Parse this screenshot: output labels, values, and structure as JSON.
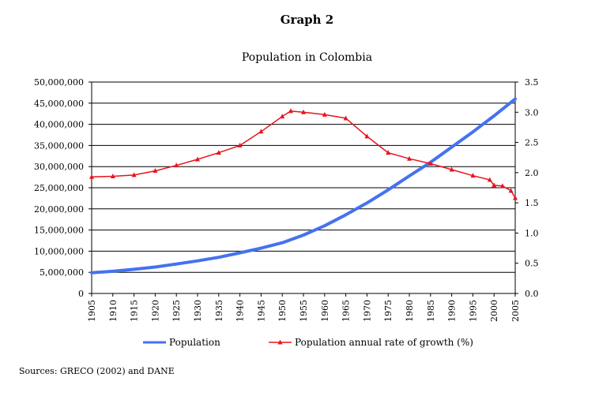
{
  "figure_label": "Graph 2",
  "source_note": "Sources: GRECO (2002) and DANE",
  "chart_data": {
    "type": "line",
    "title": "Population in Colombia",
    "xlabel": "",
    "ylabel": "",
    "x_range": [
      1905,
      2005
    ],
    "x_ticks": [
      "1905",
      "1910",
      "1915",
      "1920",
      "1925",
      "1930",
      "1935",
      "1940",
      "1945",
      "1950",
      "1955",
      "1960",
      "1965",
      "1970",
      "1975",
      "1980",
      "1985",
      "1990",
      "1995",
      "2000",
      "2005"
    ],
    "y_left": {
      "range": [
        0,
        50000000
      ],
      "ticks": [
        0,
        5000000,
        10000000,
        15000000,
        20000000,
        25000000,
        30000000,
        35000000,
        40000000,
        45000000,
        50000000
      ],
      "tick_labels": [
        "0",
        "5,000,000",
        "10,000,000",
        "15,000,000",
        "20,000,000",
        "25,000,000",
        "30,000,000",
        "35,000,000",
        "40,000,000",
        "45,000,000",
        "50,000,000"
      ]
    },
    "y_right": {
      "range": [
        0,
        3.5
      ],
      "ticks": [
        0,
        0.5,
        1,
        1.5,
        2,
        2.5,
        3,
        3.5
      ],
      "tick_labels": [
        "0.0",
        "0.5",
        "1.0",
        "1.5",
        "2.0",
        "2.5",
        "3.0",
        "3.5"
      ]
    },
    "grid": "horizontal",
    "legend_position": "bottom",
    "series": [
      {
        "name": "Population",
        "axis": "left",
        "color": "#4472f0",
        "marker": "none",
        "points": [
          [
            1905,
            4900000
          ],
          [
            1910,
            5250000
          ],
          [
            1915,
            5700000
          ],
          [
            1920,
            6250000
          ],
          [
            1925,
            6950000
          ],
          [
            1930,
            7700000
          ],
          [
            1935,
            8550000
          ],
          [
            1940,
            9600000
          ],
          [
            1945,
            10700000
          ],
          [
            1950,
            12000000
          ],
          [
            1955,
            13800000
          ],
          [
            1960,
            16000000
          ],
          [
            1965,
            18600000
          ],
          [
            1970,
            21400000
          ],
          [
            1975,
            24500000
          ],
          [
            1980,
            27800000
          ],
          [
            1985,
            31000000
          ],
          [
            1990,
            34600000
          ],
          [
            1995,
            38200000
          ],
          [
            2000,
            42000000
          ],
          [
            2005,
            46000000
          ]
        ]
      },
      {
        "name": "Population annual rate of growth (%)",
        "axis": "right",
        "color": "#e8141e",
        "marker": "triangle",
        "points": [
          [
            1905,
            1.93
          ],
          [
            1910,
            1.94
          ],
          [
            1915,
            1.96
          ],
          [
            1920,
            2.03
          ],
          [
            1925,
            2.12
          ],
          [
            1930,
            2.22
          ],
          [
            1935,
            2.33
          ],
          [
            1940,
            2.45
          ],
          [
            1945,
            2.68
          ],
          [
            1950,
            2.93
          ],
          [
            1952,
            3.02
          ],
          [
            1955,
            3.0
          ],
          [
            1960,
            2.96
          ],
          [
            1965,
            2.9
          ],
          [
            1970,
            2.6
          ],
          [
            1975,
            2.33
          ],
          [
            1980,
            2.23
          ],
          [
            1985,
            2.15
          ],
          [
            1990,
            2.05
          ],
          [
            1995,
            1.95
          ],
          [
            1999,
            1.88
          ],
          [
            2000,
            1.79
          ],
          [
            2002,
            1.78
          ],
          [
            2004,
            1.7
          ],
          [
            2005,
            1.58
          ]
        ]
      }
    ]
  }
}
